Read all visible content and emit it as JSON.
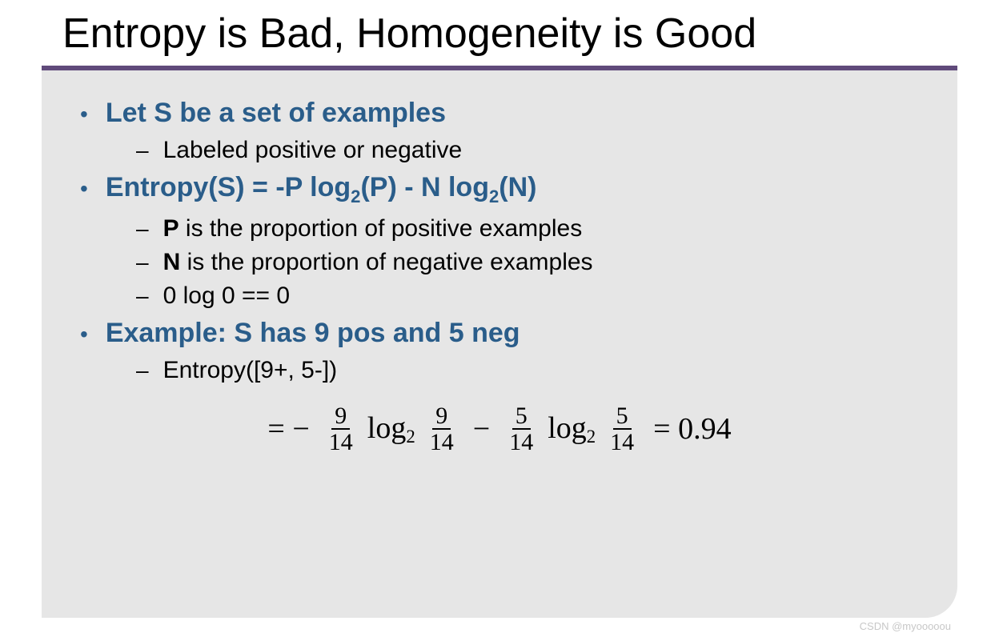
{
  "colors": {
    "title_text": "#000000",
    "rule": "#604a7b",
    "panel_bg": "#e6e6e6",
    "heading": "#2a5d8a",
    "body_text": "#000000",
    "watermark": "#c8c8c8"
  },
  "typography": {
    "title_fontsize": 52,
    "heading_fontsize": 34,
    "body_fontsize": 30,
    "equation_fontsize": 38,
    "watermark_fontsize": 13
  },
  "title": "Entropy is Bad, Homogeneity is Good",
  "bullets": [
    {
      "heading": "Let S be a set of examples",
      "sub": [
        {
          "text": "Labeled positive or negative"
        }
      ]
    },
    {
      "heading_html": "Entropy(S) = -P log<sub>2</sub>(P) - N log<sub>2</sub>(N)",
      "sub": [
        {
          "html": "<b>P</b> is the proportion of positive examples"
        },
        {
          "html": "<b>N</b> is the proportion of negative examples"
        },
        {
          "text": "0 log 0 == 0"
        }
      ]
    },
    {
      "heading": "Example: S has 9 pos and 5 neg",
      "sub": [
        {
          "text": "Entropy([9+, 5-])"
        }
      ]
    }
  ],
  "equation": {
    "lead": "= −",
    "term1": {
      "num": "9",
      "den": "14"
    },
    "log1": "log",
    "logsub": "2",
    "term2": {
      "num": "9",
      "den": "14"
    },
    "minus": "−",
    "term3": {
      "num": "5",
      "den": "14"
    },
    "log2": "log",
    "term4": {
      "num": "5",
      "den": "14"
    },
    "equals": "= 0.94"
  },
  "watermark": "CSDN @myooooou"
}
